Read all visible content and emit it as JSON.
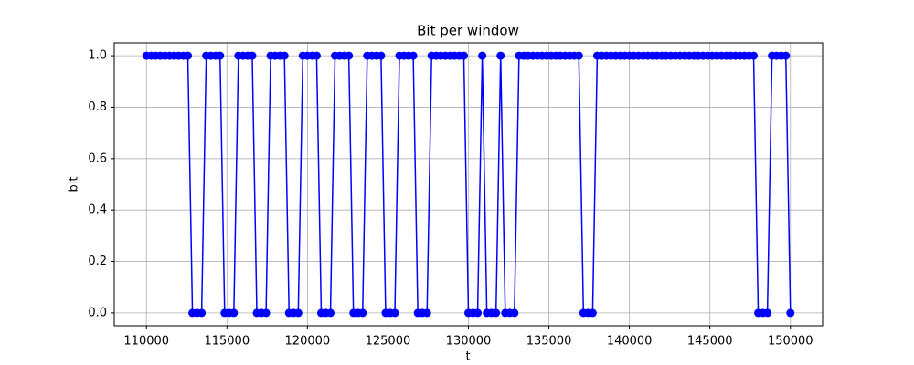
{
  "chart_data": {
    "type": "line",
    "title": "Bit per window",
    "x_label": "t",
    "y_label": "bit",
    "x": [
      110000,
      110286,
      110571,
      110857,
      111143,
      111429,
      111714,
      112000,
      112286,
      112571,
      112857,
      113143,
      113429,
      113714,
      114000,
      114286,
      114571,
      114857,
      115143,
      115429,
      115714,
      116000,
      116286,
      116571,
      116857,
      117143,
      117429,
      117714,
      118000,
      118286,
      118571,
      118857,
      119143,
      119429,
      119714,
      120000,
      120286,
      120571,
      120857,
      121143,
      121429,
      121714,
      122000,
      122286,
      122571,
      122857,
      123143,
      123429,
      123714,
      124000,
      124286,
      124571,
      124857,
      125143,
      125429,
      125714,
      126000,
      126286,
      126571,
      126857,
      127143,
      127429,
      127714,
      128000,
      128286,
      128571,
      128857,
      129143,
      129429,
      129714,
      130000,
      130286,
      130571,
      130857,
      131143,
      131429,
      131714,
      132000,
      132286,
      132571,
      132857,
      133143,
      133429,
      133714,
      134000,
      134286,
      134571,
      134857,
      135143,
      135429,
      135714,
      136000,
      136286,
      136571,
      136857,
      137143,
      137429,
      137714,
      138000,
      138286,
      138571,
      138857,
      139143,
      139429,
      139714,
      140000,
      140286,
      140571,
      140857,
      141143,
      141429,
      141714,
      142000,
      142286,
      142571,
      142857,
      143143,
      143429,
      143714,
      144000,
      144286,
      144571,
      144857,
      145143,
      145429,
      145714,
      146000,
      146286,
      146571,
      146857,
      147143,
      147429,
      147714,
      148000,
      148286,
      148571,
      148857,
      149143,
      149429,
      149714,
      150000
    ],
    "series": [
      {
        "name": "bit",
        "color": "#0000ff",
        "marker": "o",
        "values": [
          1,
          1,
          1,
          1,
          1,
          1,
          1,
          1,
          1,
          1,
          0,
          0,
          0,
          1,
          1,
          1,
          1,
          0,
          0,
          0,
          1,
          1,
          1,
          1,
          0,
          0,
          0,
          1,
          1,
          1,
          1,
          0,
          0,
          0,
          1,
          1,
          1,
          1,
          0,
          0,
          0,
          1,
          1,
          1,
          1,
          0,
          0,
          0,
          1,
          1,
          1,
          1,
          0,
          0,
          0,
          1,
          1,
          1,
          1,
          0,
          0,
          0,
          1,
          1,
          1,
          1,
          1,
          1,
          1,
          1,
          0,
          0,
          0,
          1,
          0,
          0,
          0,
          1,
          0,
          0,
          0,
          1,
          1,
          1,
          1,
          1,
          1,
          1,
          1,
          1,
          1,
          1,
          1,
          1,
          1,
          0,
          0,
          0,
          1,
          1,
          1,
          1,
          1,
          1,
          1,
          1,
          1,
          1,
          1,
          1,
          1,
          1,
          1,
          1,
          1,
          1,
          1,
          1,
          1,
          1,
          1,
          1,
          1,
          1,
          1,
          1,
          1,
          1,
          1,
          1,
          1,
          1,
          1,
          0,
          0,
          0,
          1,
          1,
          1,
          1,
          0
        ]
      }
    ],
    "xlim": [
      108000,
      152000
    ],
    "ylim": [
      -0.05,
      1.05
    ],
    "xticks": [
      110000,
      115000,
      120000,
      125000,
      130000,
      135000,
      140000,
      145000,
      150000
    ],
    "yticks": [
      {
        "value": 0,
        "label": "0.0"
      },
      0.2,
      0.4,
      0.6,
      0.8,
      {
        "value": 1,
        "label": "1.0"
      }
    ],
    "grid": true
  }
}
